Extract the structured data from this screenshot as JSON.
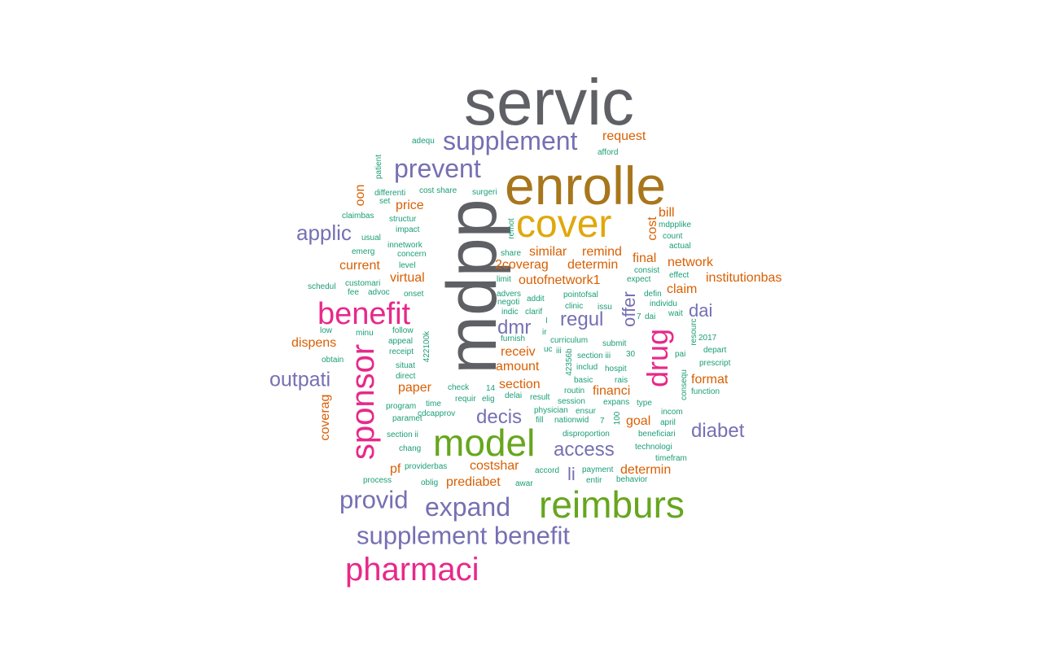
{
  "colors": {
    "gray": "#5f6065",
    "bronze": "#a8761b",
    "gold": "#dfa80c",
    "green": "#66a61e",
    "magenta": "#e7298a",
    "purple": "#7570b3",
    "orange": "#d95f02",
    "teal": "#1b9e77"
  },
  "words": [
    {
      "text": "servic",
      "tier": "gray"
    },
    {
      "text": "enrolle",
      "tier": "bronze"
    },
    {
      "text": "mdpp",
      "tier": "gray"
    },
    {
      "text": "cover",
      "tier": "gold"
    },
    {
      "text": "model",
      "tier": "green"
    },
    {
      "text": "reimburs",
      "tier": "green"
    },
    {
      "text": "benefit",
      "tier": "magenta"
    },
    {
      "text": "sponsor",
      "tier": "magenta"
    },
    {
      "text": "drug",
      "tier": "magenta"
    },
    {
      "text": "pharmaci",
      "tier": "magenta"
    },
    {
      "text": "supplement",
      "tier": "purple"
    },
    {
      "text": "prevent",
      "tier": "purple"
    },
    {
      "text": "applic",
      "tier": "purple"
    },
    {
      "text": "outpati",
      "tier": "purple"
    },
    {
      "text": "provid",
      "tier": "purple"
    },
    {
      "text": "expand",
      "tier": "purple"
    },
    {
      "text": "supplement benefit",
      "tier": "purple"
    },
    {
      "text": "access",
      "tier": "purple"
    },
    {
      "text": "diabet",
      "tier": "purple"
    },
    {
      "text": "decis",
      "tier": "purple"
    },
    {
      "text": "dmr",
      "tier": "purple"
    },
    {
      "text": "regul",
      "tier": "purple"
    },
    {
      "text": "offer",
      "tier": "purple"
    },
    {
      "text": "dai",
      "tier": "purple"
    },
    {
      "text": "li",
      "tier": "purple"
    },
    {
      "text": "request",
      "tier": "orange"
    },
    {
      "text": "price",
      "tier": "orange"
    },
    {
      "text": "bill",
      "tier": "orange"
    },
    {
      "text": "cost",
      "tier": "orange"
    },
    {
      "text": "oon",
      "tier": "orange"
    },
    {
      "text": "similar",
      "tier": "orange"
    },
    {
      "text": "remind",
      "tier": "orange"
    },
    {
      "text": "final",
      "tier": "orange"
    },
    {
      "text": "network",
      "tier": "orange"
    },
    {
      "text": "current",
      "tier": "orange"
    },
    {
      "text": "2coverag",
      "tier": "orange"
    },
    {
      "text": "determin",
      "tier": "orange"
    },
    {
      "text": "virtual",
      "tier": "orange"
    },
    {
      "text": "outofnetwork1",
      "tier": "orange"
    },
    {
      "text": "claim",
      "tier": "orange"
    },
    {
      "text": "institutionbas",
      "tier": "orange"
    },
    {
      "text": "dispens",
      "tier": "orange"
    },
    {
      "text": "receiv",
      "tier": "orange"
    },
    {
      "text": "amount",
      "tier": "orange"
    },
    {
      "text": "section",
      "tier": "orange"
    },
    {
      "text": "format",
      "tier": "orange"
    },
    {
      "text": "paper",
      "tier": "orange"
    },
    {
      "text": "financi",
      "tier": "orange"
    },
    {
      "text": "coverag",
      "tier": "orange"
    },
    {
      "text": "goal",
      "tier": "orange"
    },
    {
      "text": "pf",
      "tier": "orange"
    },
    {
      "text": "costshar",
      "tier": "orange"
    },
    {
      "text": "determin",
      "tier": "orange"
    },
    {
      "text": "prediabet",
      "tier": "orange"
    },
    {
      "text": "adequ",
      "tier": "teal"
    },
    {
      "text": "afford",
      "tier": "teal"
    },
    {
      "text": "patient",
      "tier": "teal"
    },
    {
      "text": "differenti",
      "tier": "teal"
    },
    {
      "text": "cost share",
      "tier": "teal"
    },
    {
      "text": "surgeri",
      "tier": "teal"
    },
    {
      "text": "set",
      "tier": "teal"
    },
    {
      "text": "claimbas",
      "tier": "teal"
    },
    {
      "text": "structur",
      "tier": "teal"
    },
    {
      "text": "impact",
      "tier": "teal"
    },
    {
      "text": "usual",
      "tier": "teal"
    },
    {
      "text": "innetwork",
      "tier": "teal"
    },
    {
      "text": "emerg",
      "tier": "teal"
    },
    {
      "text": "concern",
      "tier": "teal"
    },
    {
      "text": "level",
      "tier": "teal"
    },
    {
      "text": "customari",
      "tier": "teal"
    },
    {
      "text": "schedul",
      "tier": "teal"
    },
    {
      "text": "fee",
      "tier": "teal"
    },
    {
      "text": "advoc",
      "tier": "teal"
    },
    {
      "text": "onset",
      "tier": "teal"
    },
    {
      "text": "remot",
      "tier": "teal"
    },
    {
      "text": "share",
      "tier": "teal"
    },
    {
      "text": "limit",
      "tier": "teal"
    },
    {
      "text": "advers",
      "tier": "teal"
    },
    {
      "text": "negoti",
      "tier": "teal"
    },
    {
      "text": "addit",
      "tier": "teal"
    },
    {
      "text": "indic",
      "tier": "teal"
    },
    {
      "text": "clarif",
      "tier": "teal"
    },
    {
      "text": "pointofsal",
      "tier": "teal"
    },
    {
      "text": "clinic",
      "tier": "teal"
    },
    {
      "text": "issu",
      "tier": "teal"
    },
    {
      "text": "mdpplike",
      "tier": "teal"
    },
    {
      "text": "count",
      "tier": "teal"
    },
    {
      "text": "actual",
      "tier": "teal"
    },
    {
      "text": "consist",
      "tier": "teal"
    },
    {
      "text": "expect",
      "tier": "teal"
    },
    {
      "text": "effect",
      "tier": "teal"
    },
    {
      "text": "defin",
      "tier": "teal"
    },
    {
      "text": "individu",
      "tier": "teal"
    },
    {
      "text": "wait",
      "tier": "teal"
    },
    {
      "text": "7",
      "tier": "teal"
    },
    {
      "text": "dai",
      "tier": "teal"
    },
    {
      "text": "resourc",
      "tier": "teal"
    },
    {
      "text": "low",
      "tier": "teal"
    },
    {
      "text": "minu",
      "tier": "teal"
    },
    {
      "text": "follow",
      "tier": "teal"
    },
    {
      "text": "appeal",
      "tier": "teal"
    },
    {
      "text": "receipt",
      "tier": "teal"
    },
    {
      "text": "422100k",
      "tier": "teal"
    },
    {
      "text": "obtain",
      "tier": "teal"
    },
    {
      "text": "situat",
      "tier": "teal"
    },
    {
      "text": "direct",
      "tier": "teal"
    },
    {
      "text": "furnish",
      "tier": "teal"
    },
    {
      "text": "ir",
      "tier": "teal"
    },
    {
      "text": "curriculum",
      "tier": "teal"
    },
    {
      "text": "uc",
      "tier": "teal"
    },
    {
      "text": "iii",
      "tier": "teal"
    },
    {
      "text": "submit",
      "tier": "teal"
    },
    {
      "text": "section iii",
      "tier": "teal"
    },
    {
      "text": "30",
      "tier": "teal"
    },
    {
      "text": "includ",
      "tier": "teal"
    },
    {
      "text": "hospit",
      "tier": "teal"
    },
    {
      "text": "pai",
      "tier": "teal"
    },
    {
      "text": "2017",
      "tier": "teal"
    },
    {
      "text": "depart",
      "tier": "teal"
    },
    {
      "text": "prescript",
      "tier": "teal"
    },
    {
      "text": "42356b",
      "tier": "teal"
    },
    {
      "text": "basic",
      "tier": "teal"
    },
    {
      "text": "rais",
      "tier": "teal"
    },
    {
      "text": "check",
      "tier": "teal"
    },
    {
      "text": "14",
      "tier": "teal"
    },
    {
      "text": "requir",
      "tier": "teal"
    },
    {
      "text": "elig",
      "tier": "teal"
    },
    {
      "text": "delai",
      "tier": "teal"
    },
    {
      "text": "result",
      "tier": "teal"
    },
    {
      "text": "routin",
      "tier": "teal"
    },
    {
      "text": "session",
      "tier": "teal"
    },
    {
      "text": "expans",
      "tier": "teal"
    },
    {
      "text": "type",
      "tier": "teal"
    },
    {
      "text": "consequ",
      "tier": "teal"
    },
    {
      "text": "function",
      "tier": "teal"
    },
    {
      "text": "program",
      "tier": "teal"
    },
    {
      "text": "time",
      "tier": "teal"
    },
    {
      "text": "paramet",
      "tier": "teal"
    },
    {
      "text": "cdcapprov",
      "tier": "teal"
    },
    {
      "text": "physician",
      "tier": "teal"
    },
    {
      "text": "ensur",
      "tier": "teal"
    },
    {
      "text": "fill",
      "tier": "teal"
    },
    {
      "text": "nationwid",
      "tier": "teal"
    },
    {
      "text": "7",
      "tier": "teal"
    },
    {
      "text": "100",
      "tier": "teal"
    },
    {
      "text": "incom",
      "tier": "teal"
    },
    {
      "text": "april",
      "tier": "teal"
    },
    {
      "text": "section ii",
      "tier": "teal"
    },
    {
      "text": "disproportion",
      "tier": "teal"
    },
    {
      "text": "beneficiari",
      "tier": "teal"
    },
    {
      "text": "chang",
      "tier": "teal"
    },
    {
      "text": "technologi",
      "tier": "teal"
    },
    {
      "text": "timefram",
      "tier": "teal"
    },
    {
      "text": "providerbas",
      "tier": "teal"
    },
    {
      "text": "accord",
      "tier": "teal"
    },
    {
      "text": "payment",
      "tier": "teal"
    },
    {
      "text": "process",
      "tier": "teal"
    },
    {
      "text": "oblig",
      "tier": "teal"
    },
    {
      "text": "awar",
      "tier": "teal"
    },
    {
      "text": "entir",
      "tier": "teal"
    },
    {
      "text": "behavior",
      "tier": "teal"
    },
    {
      "text": "I",
      "tier": "teal"
    }
  ]
}
